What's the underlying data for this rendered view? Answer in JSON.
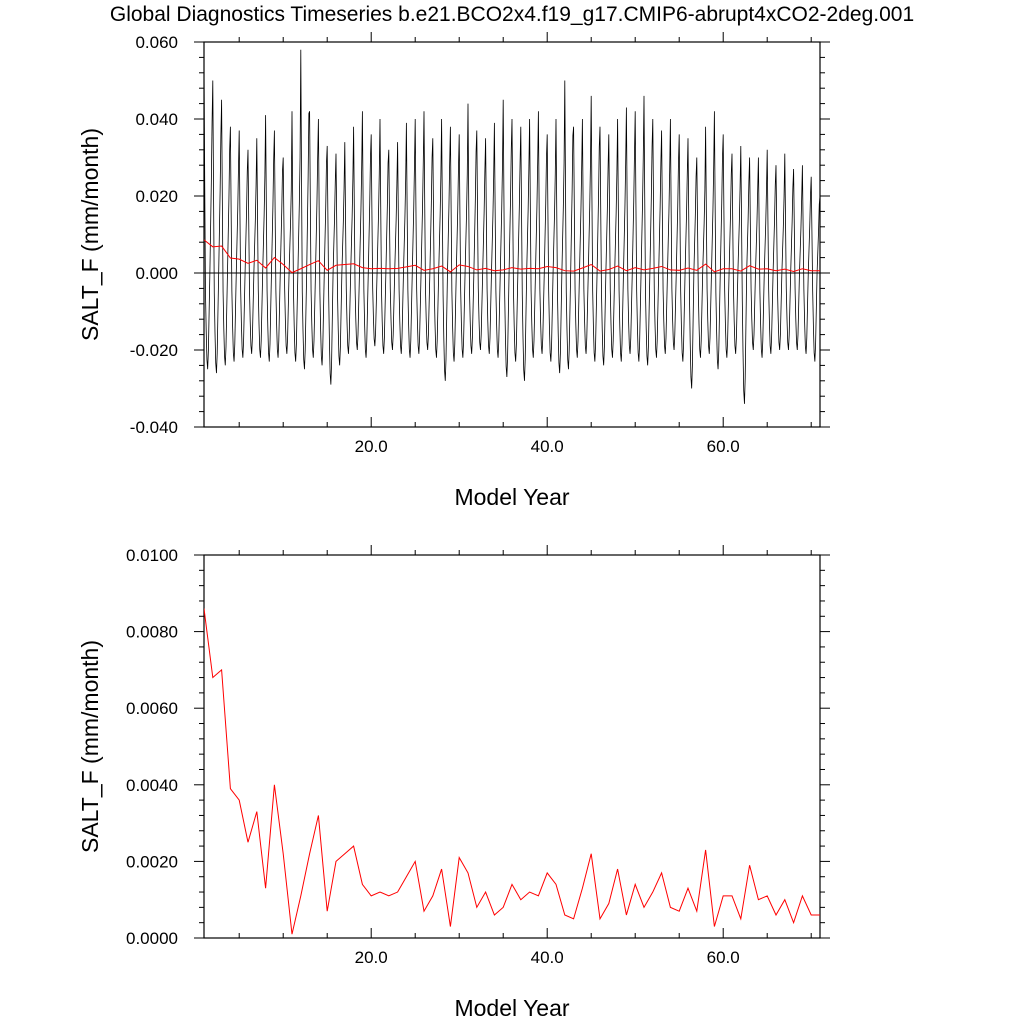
{
  "title": "Global Diagnostics Timeseries b.e21.BCO2x4.f19_g17.CMIP6-abrupt4xCO2-2deg.001",
  "colors": {
    "monthly": "#000000",
    "annual": "#ff0000",
    "zero_line": "#000000"
  },
  "chart_data": [
    {
      "type": "line",
      "title": "",
      "xlabel": "Model Year",
      "ylabel": "SALT_F (mm/month)",
      "xlim": [
        1,
        71
      ],
      "ylim": [
        -0.04,
        0.06
      ],
      "xticks": [
        20,
        40,
        60
      ],
      "xtick_labels": [
        "20.0",
        "40.0",
        "60.0"
      ],
      "yticks": [
        -0.04,
        -0.02,
        0.0,
        0.02,
        0.04,
        0.06
      ],
      "ytick_labels": [
        "-0.040",
        "-0.020",
        "0.000",
        "0.020",
        "0.040",
        "0.060"
      ],
      "zero_line": true,
      "monthly_series": {
        "color": "#000000",
        "annual_cycle_template": [
          0.028,
          0.012,
          -0.004,
          -0.012,
          -0.018,
          -0.02,
          -0.016,
          -0.008,
          0.0,
          0.006,
          0.012,
          0.02
        ],
        "annual_peaks": [
          0.055,
          0.05,
          0.045,
          0.038,
          0.037,
          0.032,
          0.035,
          0.041,
          0.037,
          0.03,
          0.042,
          0.058,
          0.042,
          0.04,
          0.033,
          0.031,
          0.034,
          0.038,
          0.042,
          0.036,
          0.04,
          0.032,
          0.034,
          0.039,
          0.04,
          0.042,
          0.035,
          0.04,
          0.038,
          0.036,
          0.044,
          0.037,
          0.035,
          0.039,
          0.045,
          0.04,
          0.038,
          0.04,
          0.042,
          0.036,
          0.04,
          0.05,
          0.038,
          0.04,
          0.046,
          0.038,
          0.036,
          0.04,
          0.043,
          0.042,
          0.046,
          0.04,
          0.037,
          0.04,
          0.036,
          0.035,
          0.03,
          0.038,
          0.042,
          0.036,
          0.031,
          0.033,
          0.03,
          0.03,
          0.032,
          0.028,
          0.031,
          0.027,
          0.028,
          0.025,
          0.02
        ],
        "annual_troughs": [
          -0.025,
          -0.026,
          -0.024,
          -0.023,
          -0.022,
          -0.021,
          -0.022,
          -0.023,
          -0.022,
          -0.021,
          -0.023,
          -0.025,
          -0.022,
          -0.024,
          -0.029,
          -0.024,
          -0.021,
          -0.02,
          -0.022,
          -0.019,
          -0.021,
          -0.02,
          -0.021,
          -0.022,
          -0.021,
          -0.02,
          -0.022,
          -0.028,
          -0.023,
          -0.022,
          -0.021,
          -0.02,
          -0.021,
          -0.022,
          -0.027,
          -0.023,
          -0.028,
          -0.022,
          -0.021,
          -0.023,
          -0.026,
          -0.025,
          -0.022,
          -0.021,
          -0.023,
          -0.024,
          -0.022,
          -0.023,
          -0.021,
          -0.023,
          -0.024,
          -0.022,
          -0.021,
          -0.02,
          -0.023,
          -0.03,
          -0.022,
          -0.021,
          -0.025,
          -0.022,
          -0.021,
          -0.034,
          -0.02,
          -0.022,
          -0.021,
          -0.02,
          -0.02,
          -0.02,
          -0.021,
          -0.023,
          -0.02
        ]
      },
      "annual_series": {
        "color": "#ff0000",
        "x": [
          1,
          2,
          3,
          4,
          5,
          6,
          7,
          8,
          9,
          10,
          11,
          12,
          13,
          14,
          15,
          16,
          17,
          18,
          19,
          20,
          21,
          22,
          23,
          24,
          25,
          26,
          27,
          28,
          29,
          30,
          31,
          32,
          33,
          34,
          35,
          36,
          37,
          38,
          39,
          40,
          41,
          42,
          43,
          44,
          45,
          46,
          47,
          48,
          49,
          50,
          51,
          52,
          53,
          54,
          55,
          56,
          57,
          58,
          59,
          60,
          61,
          62,
          63,
          64,
          65,
          66,
          67,
          68,
          69,
          70,
          71
        ],
        "y": [
          0.0086,
          0.0068,
          0.007,
          0.0039,
          0.0036,
          0.0025,
          0.0033,
          0.0013,
          0.004,
          0.0022,
          0.0001,
          0.0011,
          0.0022,
          0.0032,
          0.0007,
          0.002,
          0.0022,
          0.0024,
          0.0014,
          0.0011,
          0.0012,
          0.0011,
          0.0012,
          0.0016,
          0.002,
          0.0007,
          0.0011,
          0.0018,
          0.0003,
          0.0021,
          0.0017,
          0.0008,
          0.0012,
          0.0006,
          0.0008,
          0.0014,
          0.001,
          0.0012,
          0.0011,
          0.0017,
          0.0014,
          0.0006,
          0.0005,
          0.0013,
          0.0022,
          0.0005,
          0.0009,
          0.0018,
          0.0006,
          0.0014,
          0.0008,
          0.0012,
          0.0017,
          0.0008,
          0.0007,
          0.0013,
          0.0007,
          0.0023,
          0.0003,
          0.0011,
          0.0011,
          0.0005,
          0.0019,
          0.001,
          0.0011,
          0.0006,
          0.001,
          0.0004,
          0.0011,
          0.0006,
          0.0006
        ]
      }
    },
    {
      "type": "line",
      "title": "",
      "xlabel": "Model Year",
      "ylabel": "SALT_F (mm/month)",
      "xlim": [
        1,
        71
      ],
      "ylim": [
        0.0,
        0.01
      ],
      "xticks": [
        20,
        40,
        60
      ],
      "xtick_labels": [
        "20.0",
        "40.0",
        "60.0"
      ],
      "yticks": [
        0.0,
        0.002,
        0.004,
        0.006,
        0.008,
        0.01
      ],
      "ytick_labels": [
        "0.0000",
        "0.0020",
        "0.0040",
        "0.0060",
        "0.0080",
        "0.0100"
      ],
      "annual_series": {
        "color": "#ff0000",
        "x": [
          1,
          2,
          3,
          4,
          5,
          6,
          7,
          8,
          9,
          10,
          11,
          12,
          13,
          14,
          15,
          16,
          17,
          18,
          19,
          20,
          21,
          22,
          23,
          24,
          25,
          26,
          27,
          28,
          29,
          30,
          31,
          32,
          33,
          34,
          35,
          36,
          37,
          38,
          39,
          40,
          41,
          42,
          43,
          44,
          45,
          46,
          47,
          48,
          49,
          50,
          51,
          52,
          53,
          54,
          55,
          56,
          57,
          58,
          59,
          60,
          61,
          62,
          63,
          64,
          65,
          66,
          67,
          68,
          69,
          70,
          71
        ],
        "y": [
          0.0086,
          0.0068,
          0.007,
          0.0039,
          0.0036,
          0.0025,
          0.0033,
          0.0013,
          0.004,
          0.0022,
          0.0001,
          0.0011,
          0.0022,
          0.0032,
          0.0007,
          0.002,
          0.0022,
          0.0024,
          0.0014,
          0.0011,
          0.0012,
          0.0011,
          0.0012,
          0.0016,
          0.002,
          0.0007,
          0.0011,
          0.0018,
          0.0003,
          0.0021,
          0.0017,
          0.0008,
          0.0012,
          0.0006,
          0.0008,
          0.0014,
          0.001,
          0.0012,
          0.0011,
          0.0017,
          0.0014,
          0.0006,
          0.0005,
          0.0013,
          0.0022,
          0.0005,
          0.0009,
          0.0018,
          0.0006,
          0.0014,
          0.0008,
          0.0012,
          0.0017,
          0.0008,
          0.0007,
          0.0013,
          0.0007,
          0.0023,
          0.0003,
          0.0011,
          0.0011,
          0.0005,
          0.0019,
          0.001,
          0.0011,
          0.0006,
          0.001,
          0.0004,
          0.0011,
          0.0006,
          0.0006
        ]
      }
    }
  ]
}
